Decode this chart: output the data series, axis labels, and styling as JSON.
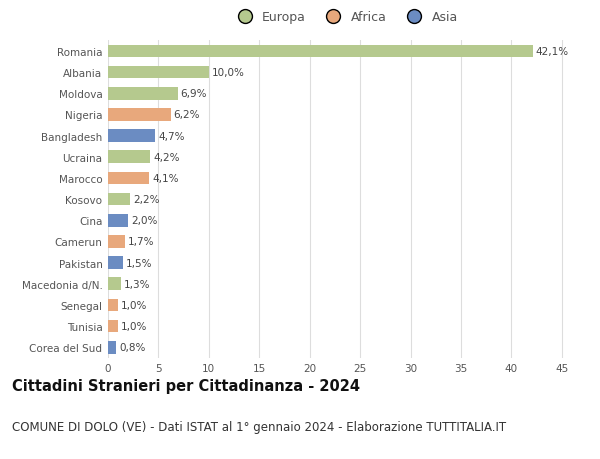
{
  "countries": [
    "Romania",
    "Albania",
    "Moldova",
    "Nigeria",
    "Bangladesh",
    "Ucraina",
    "Marocco",
    "Kosovo",
    "Cina",
    "Camerun",
    "Pakistan",
    "Macedonia d/N.",
    "Senegal",
    "Tunisia",
    "Corea del Sud"
  ],
  "values": [
    42.1,
    10.0,
    6.9,
    6.2,
    4.7,
    4.2,
    4.1,
    2.2,
    2.0,
    1.7,
    1.5,
    1.3,
    1.0,
    1.0,
    0.8
  ],
  "labels": [
    "42,1%",
    "10,0%",
    "6,9%",
    "6,2%",
    "4,7%",
    "4,2%",
    "4,1%",
    "2,2%",
    "2,0%",
    "1,7%",
    "1,5%",
    "1,3%",
    "1,0%",
    "1,0%",
    "0,8%"
  ],
  "continents": [
    "Europa",
    "Europa",
    "Europa",
    "Africa",
    "Asia",
    "Europa",
    "Africa",
    "Europa",
    "Asia",
    "Africa",
    "Asia",
    "Europa",
    "Africa",
    "Africa",
    "Asia"
  ],
  "continent_colors": {
    "Europa": "#b5c98e",
    "Africa": "#e8a87c",
    "Asia": "#6b8cc2"
  },
  "legend_labels": [
    "Europa",
    "Africa",
    "Asia"
  ],
  "legend_colors": [
    "#b5c98e",
    "#e8a87c",
    "#6b8cc2"
  ],
  "title_bold": "Cittadini Stranieri per Cittadinanza - 2024",
  "subtitle": "COMUNE DI DOLO (VE) - Dati ISTAT al 1° gennaio 2024 - Elaborazione TUTTITALIA.IT",
  "xlim": [
    0,
    47
  ],
  "xticks": [
    0,
    5,
    10,
    15,
    20,
    25,
    30,
    35,
    40,
    45
  ],
  "background_color": "#ffffff",
  "grid_color": "#dddddd",
  "bar_height": 0.6,
  "title_fontsize": 10.5,
  "subtitle_fontsize": 8.5,
  "label_fontsize": 7.5,
  "tick_fontsize": 7.5,
  "legend_fontsize": 9
}
